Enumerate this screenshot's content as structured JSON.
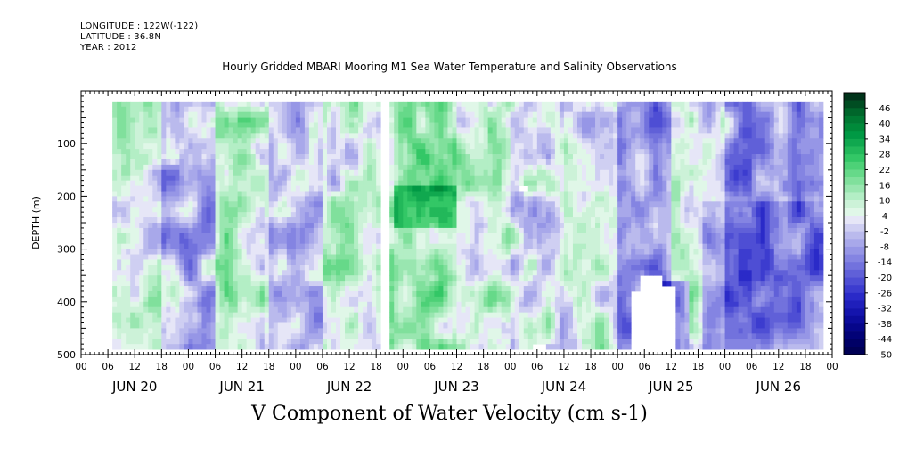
{
  "header": {
    "longitude": "LONGITUDE : 122W(-122)",
    "latitude": "LATITUDE : 36.8N",
    "year": "YEAR : 2012",
    "title": "Hourly Gridded MBARI Mooring M1 Sea Water Temperature and Salinity Observations"
  },
  "chart_data": {
    "type": "heatmap",
    "title": "Hourly Gridded MBARI Mooring M1 Sea Water Temperature and Salinity Observations",
    "xlabel": "",
    "ylabel": "DEPTH (m)",
    "caption": "V Component of Water Velocity (cm s-1)",
    "y_ticks": [
      "100",
      "200",
      "300",
      "400",
      "500"
    ],
    "ylim": [
      500,
      0
    ],
    "y_data_range": [
      20,
      485
    ],
    "x_hour_ticks": [
      "00",
      "06",
      "12",
      "18",
      "00",
      "06",
      "12",
      "18",
      "00",
      "06",
      "12",
      "18",
      "00",
      "06",
      "12",
      "18",
      "00",
      "06",
      "12",
      "18",
      "00",
      "06",
      "12",
      "18",
      "00",
      "06",
      "12",
      "18",
      "00"
    ],
    "x_day_labels": [
      "JUN 20",
      "JUN 21",
      "JUN 22",
      "JUN 23",
      "JUN 24",
      "JUN 25",
      "JUN 26"
    ],
    "x_range_hours": [
      0,
      168
    ],
    "data_start_hour": 7,
    "data_end_hour": 166,
    "gap_hours": [
      67,
      69
    ],
    "colorbar": {
      "labels": [
        "46",
        "40",
        "34",
        "28",
        "22",
        "16",
        "10",
        "4",
        "-2",
        "-8",
        "-14",
        "-20",
        "-26",
        "-32",
        "-38",
        "-44",
        "-50"
      ],
      "levels": [
        52,
        49,
        46,
        43,
        40,
        37,
        34,
        31,
        28,
        25,
        22,
        19,
        16,
        13,
        10,
        7,
        4,
        1,
        -2,
        -5,
        -8,
        -11,
        -14,
        -17,
        -20,
        -23,
        -26,
        -29,
        -32,
        -35,
        -38,
        -41,
        -44,
        -47,
        -50
      ],
      "colors": [
        "#00331a",
        "#004d22",
        "#00662b",
        "#007a33",
        "#008a3a",
        "#009944",
        "#10a84f",
        "#22b85a",
        "#33c766",
        "#4dd177",
        "#66d989",
        "#80e09c",
        "#99e6b0",
        "#b3eec5",
        "#ccf2d8",
        "#e0f7e8",
        "#e6e6f7",
        "#cfcff2",
        "#babaed",
        "#a8a8ea",
        "#9696e6",
        "#8484e2",
        "#7272dd",
        "#6060d8",
        "#4e4ed4",
        "#3c3ccf",
        "#2a2ac8",
        "#1f1fbb",
        "#1414ad",
        "#0c0c9c",
        "#06068a",
        "#020277",
        "#000066",
        "#000055"
      ]
    },
    "field_description_mean_by_hour_segment": [
      {
        "hours": [
          7,
          18
        ],
        "value": 6
      },
      {
        "hours": [
          18,
          30
        ],
        "value": -6
      },
      {
        "hours": [
          30,
          42
        ],
        "value": 8
      },
      {
        "hours": [
          42,
          54
        ],
        "value": -4
      },
      {
        "hours": [
          54,
          67
        ],
        "value": 7
      },
      {
        "hours": [
          69,
          84
        ],
        "value": 14
      },
      {
        "hours": [
          84,
          96
        ],
        "value": 9
      },
      {
        "hours": [
          96,
          108
        ],
        "value": 2
      },
      {
        "hours": [
          108,
          120
        ],
        "value": 6
      },
      {
        "hours": [
          120,
          132
        ],
        "value": -10
      },
      {
        "hours": [
          132,
          144
        ],
        "value": 4
      },
      {
        "hours": [
          144,
          166
        ],
        "value": -9
      }
    ],
    "missing_blocks_hours_depths": [
      {
        "hours": [
          98,
          100
        ],
        "depth": [
          175,
          190
        ]
      },
      {
        "hours": [
          101,
          104
        ],
        "depth": [
          475,
          485
        ]
      },
      {
        "hours": [
          123,
          125
        ],
        "depth": [
          380,
          485
        ]
      },
      {
        "hours": [
          125,
          130
        ],
        "depth": [
          345,
          485
        ]
      },
      {
        "hours": [
          130,
          133
        ],
        "depth": [
          370,
          485
        ]
      }
    ]
  }
}
